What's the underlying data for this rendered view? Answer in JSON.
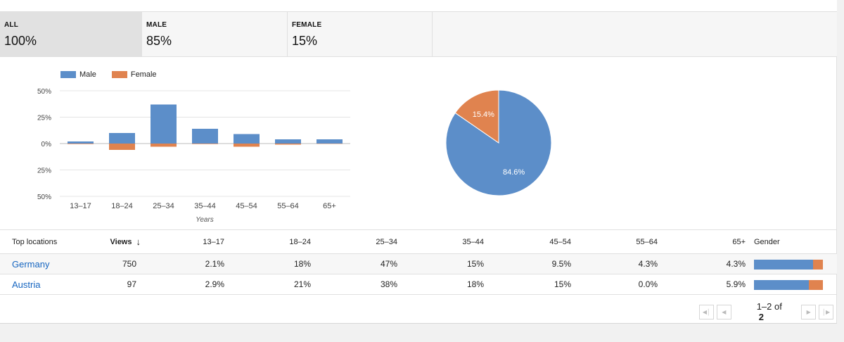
{
  "tabs": [
    {
      "label": "ALL",
      "value": "100%"
    },
    {
      "label": "MALE",
      "value": "85%"
    },
    {
      "label": "FEMALE",
      "value": "15%"
    }
  ],
  "legend": {
    "male": "Male",
    "female": "Female"
  },
  "colors": {
    "male": "#5c8ec9",
    "female": "#e0834f",
    "grid": "#e4e4e4",
    "link": "#1565c0"
  },
  "chart_data": [
    {
      "type": "bar",
      "categories": [
        "13–17",
        "18–24",
        "25–34",
        "35–44",
        "45–54",
        "55–64",
        "65+"
      ],
      "series": [
        {
          "name": "Male",
          "values": [
            2,
            10,
            37,
            14,
            9,
            4,
            4
          ]
        },
        {
          "name": "Female",
          "values": [
            0.5,
            6,
            3,
            0.5,
            3,
            1,
            0.3
          ]
        }
      ],
      "ytick_labels": [
        "50%",
        "25%",
        "0%",
        "25%",
        "50%"
      ],
      "ylim": [
        -50,
        50
      ],
      "xlabel": "Years",
      "legend_position": "top-left",
      "grid": true
    },
    {
      "type": "pie",
      "labels": [
        "Male",
        "Female"
      ],
      "values": [
        84.6,
        15.4
      ],
      "data_labels": [
        "84.6%",
        "15.4%"
      ]
    }
  ],
  "table": {
    "headers": {
      "location": "Top locations",
      "views": "Views",
      "ages": [
        "13–17",
        "18–24",
        "25–34",
        "35–44",
        "45–54",
        "55–64",
        "65+"
      ],
      "gender": "Gender"
    },
    "rows": [
      {
        "location": "Germany",
        "views": "750",
        "ages": [
          "2.1%",
          "18%",
          "47%",
          "15%",
          "9.5%",
          "4.3%",
          "4.3%"
        ],
        "male_share": 0.86
      },
      {
        "location": "Austria",
        "views": "97",
        "ages": [
          "2.9%",
          "21%",
          "38%",
          "18%",
          "15%",
          "0.0%",
          "5.9%"
        ],
        "male_share": 0.8
      }
    ]
  },
  "pager": {
    "range": "1–2",
    "of": "of",
    "total": "2"
  }
}
